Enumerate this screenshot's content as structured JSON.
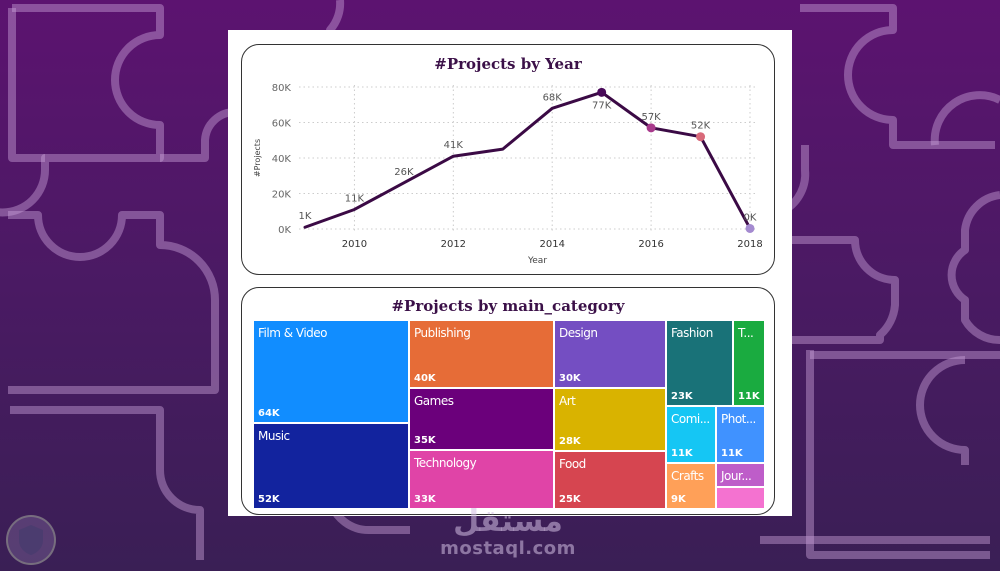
{
  "colors": {
    "background": "#4a1a63",
    "line": "#3b0a45",
    "title": "#3b1048"
  },
  "chart_data": [
    {
      "type": "line",
      "title": "#Projects by Year",
      "xlabel": "Year",
      "ylabel": "#Projects",
      "x": [
        2009,
        2010,
        2011,
        2012,
        2013,
        2014,
        2015,
        2016,
        2017,
        2018
      ],
      "values": [
        1000,
        11000,
        26000,
        41000,
        45000,
        68000,
        77000,
        57000,
        52000,
        300
      ],
      "data_labels": [
        "1K",
        "11K",
        "26K",
        "41K",
        "",
        "68K",
        "77K",
        "57K",
        "52K",
        "0K"
      ],
      "highlighted_points": [
        {
          "x": 2015,
          "color": "#4a0a5a"
        },
        {
          "x": 2016,
          "color": "#a83a8c"
        },
        {
          "x": 2017,
          "color": "#d96a7a"
        },
        {
          "x": 2018,
          "color": "#a48ad0"
        }
      ],
      "xticks": [
        "2010",
        "2012",
        "2014",
        "2016",
        "2018"
      ],
      "yticks": [
        "0K",
        "20K",
        "40K",
        "60K",
        "80K"
      ],
      "xlim": [
        2009,
        2018
      ],
      "ylim": [
        0,
        80000
      ],
      "grid": true
    },
    {
      "type": "treemap",
      "title": "#Projects by main_category",
      "categories": [
        "Film & Video",
        "Music",
        "Publishing",
        "Games",
        "Technology",
        "Design",
        "Art",
        "Food",
        "Fashion",
        "T...",
        "Comi...",
        "Phot...",
        "Crafts",
        "Jour...",
        ""
      ],
      "values": [
        64000,
        52000,
        40000,
        35000,
        33000,
        30000,
        28000,
        25000,
        23000,
        11000,
        11000,
        11000,
        9000,
        4000,
        3000
      ],
      "value_labels": [
        "64K",
        "52K",
        "40K",
        "35K",
        "33K",
        "30K",
        "28K",
        "25K",
        "23K",
        "11K",
        "11K",
        "11K",
        "9K",
        "",
        ""
      ],
      "colors": [
        "#118dff",
        "#12239e",
        "#e66c37",
        "#6b007b",
        "#e044a7",
        "#744ec2",
        "#d9b300",
        "#d64550",
        "#197278",
        "#1aab40",
        "#15c6f4",
        "#4092ff",
        "#ffa058",
        "#be5dc9",
        "#f472d0"
      ]
    }
  ],
  "watermark": {
    "arabic": "مستقل",
    "site": "mostaql.com"
  }
}
